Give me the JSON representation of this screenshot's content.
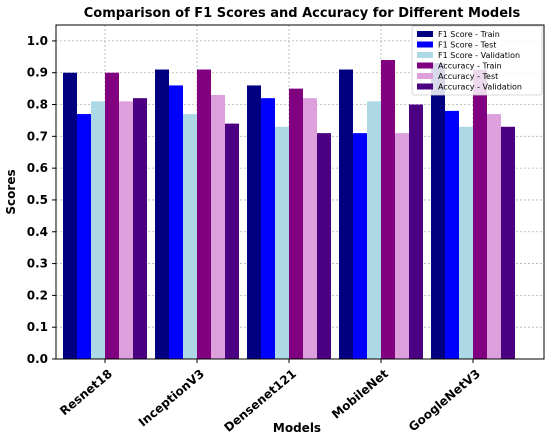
{
  "chart_data": {
    "type": "bar",
    "title": "Comparison of F1 Scores and Accuracy for Different Models",
    "xlabel": "Models",
    "ylabel": "Scores",
    "ylim": [
      0,
      1.05
    ],
    "yticks": [
      "0.0",
      "0.1",
      "0.2",
      "0.3",
      "0.4",
      "0.5",
      "0.6",
      "0.7",
      "0.8",
      "0.9",
      "1.0"
    ],
    "ytick_values": [
      0,
      0.1,
      0.2,
      0.3,
      0.4,
      0.5,
      0.6,
      0.7,
      0.8,
      0.9,
      1.0
    ],
    "grid": true,
    "legend_position": "top-right",
    "categories": [
      "Resnet18",
      "InceptionV3",
      "Densenet121",
      "MobileNet",
      "GoogleNetV3"
    ],
    "series": [
      {
        "name": "F1 Score - Train",
        "color": "#000080",
        "values": [
          0.9,
          0.91,
          0.86,
          0.91,
          0.93
        ]
      },
      {
        "name": "F1 Score - Test",
        "color": "#0000ff",
        "values": [
          0.77,
          0.86,
          0.82,
          0.71,
          0.78
        ]
      },
      {
        "name": "F1 Score - Validation",
        "color": "#add8e6",
        "values": [
          0.81,
          0.77,
          0.73,
          0.81,
          0.73
        ]
      },
      {
        "name": "Accuracy - Train",
        "color": "#800080",
        "values": [
          0.9,
          0.91,
          0.85,
          0.94,
          0.91
        ]
      },
      {
        "name": "Accuracy - Test",
        "color": "#dda0dd",
        "values": [
          0.81,
          0.83,
          0.82,
          0.71,
          0.77
        ]
      },
      {
        "name": "Accuracy - Validation",
        "color": "#4b0082",
        "values": [
          0.82,
          0.74,
          0.71,
          0.8,
          0.73
        ]
      }
    ]
  }
}
